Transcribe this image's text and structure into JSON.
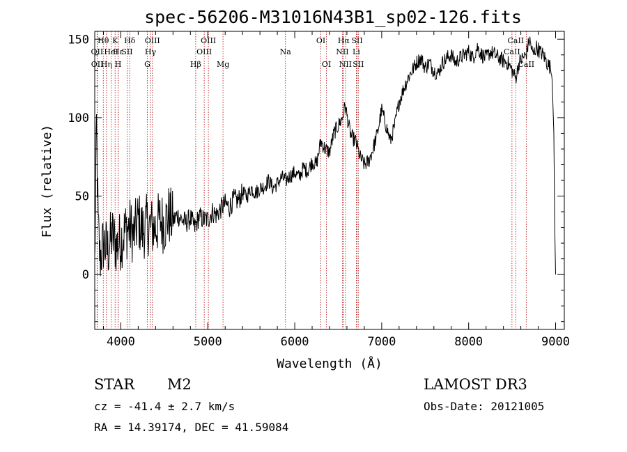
{
  "chart_data": {
    "type": "line",
    "title": "spec-56206-M31016N43B1_sp02-126.fits",
    "xlabel": "Wavelength (Å)",
    "ylabel": "Flux (relative)",
    "xlim": [
      3700,
      9100
    ],
    "ylim": [
      -35,
      155
    ],
    "x_ticks": [
      4000,
      5000,
      6000,
      7000,
      8000,
      9000
    ],
    "y_ticks": [
      0,
      50,
      100,
      150
    ],
    "series": [
      {
        "name": "spectrum",
        "x": [
          3700,
          3720,
          3740,
          3760,
          3800,
          3850,
          3900,
          3950,
          4000,
          4050,
          4100,
          4150,
          4200,
          4250,
          4300,
          4350,
          4400,
          4450,
          4500,
          4550,
          4600,
          4650,
          4700,
          4750,
          4800,
          4850,
          4900,
          4950,
          5000,
          5050,
          5100,
          5150,
          5200,
          5250,
          5300,
          5350,
          5400,
          5450,
          5500,
          5550,
          5600,
          5650,
          5700,
          5750,
          5800,
          5850,
          5900,
          5950,
          6000,
          6050,
          6100,
          6150,
          6200,
          6250,
          6300,
          6350,
          6400,
          6450,
          6500,
          6550,
          6580,
          6620,
          6650,
          6700,
          6750,
          6800,
          6850,
          6900,
          6950,
          7000,
          7050,
          7100,
          7150,
          7200,
          7250,
          7300,
          7350,
          7400,
          7450,
          7500,
          7550,
          7600,
          7650,
          7700,
          7750,
          7800,
          7850,
          7900,
          7950,
          8000,
          8050,
          8100,
          8150,
          8200,
          8250,
          8300,
          8350,
          8400,
          8450,
          8500,
          8540,
          8580,
          8620,
          8660,
          8700,
          8740,
          8780,
          8820,
          8860,
          8900,
          8940,
          8960,
          8980,
          8990,
          9000
        ],
        "y": [
          5,
          95,
          30,
          10,
          20,
          15,
          25,
          18,
          22,
          28,
          30,
          25,
          35,
          28,
          32,
          30,
          30,
          35,
          32,
          38,
          34,
          38,
          35,
          33,
          36,
          30,
          37,
          35,
          35,
          40,
          38,
          42,
          45,
          43,
          48,
          47,
          52,
          50,
          55,
          52,
          55,
          56,
          60,
          55,
          58,
          62,
          60,
          63,
          65,
          62,
          68,
          66,
          72,
          70,
          85,
          80,
          78,
          90,
          95,
          100,
          108,
          95,
          88,
          85,
          75,
          70,
          72,
          80,
          90,
          105,
          95,
          85,
          95,
          110,
          118,
          125,
          130,
          135,
          138,
          132,
          135,
          130,
          128,
          135,
          138,
          140,
          135,
          138,
          140,
          142,
          138,
          145,
          140,
          138,
          142,
          140,
          138,
          136,
          135,
          130,
          125,
          135,
          138,
          140,
          150,
          140,
          145,
          142,
          140,
          135,
          132,
          125,
          90,
          30,
          0
        ]
      }
    ],
    "spectral_lines": [
      {
        "label": "Hθ",
        "wavelength": 3798,
        "row": 0
      },
      {
        "label": "Hη",
        "wavelength": 3835,
        "row": 2
      },
      {
        "label": "OII",
        "wavelength": 3727,
        "row": 1
      },
      {
        "label": "OII",
        "wavelength": 3729,
        "row": 2
      },
      {
        "label": "Hε",
        "wavelength": 3970,
        "row": 1
      },
      {
        "label": "HeI",
        "wavelength": 3889,
        "row": 1
      },
      {
        "label": "K",
        "wavelength": 3934,
        "row": 0
      },
      {
        "label": "H",
        "wavelength": 3969,
        "row": 2
      },
      {
        "label": "SII",
        "wavelength": 4072,
        "row": 1
      },
      {
        "label": "Hδ",
        "wavelength": 4102,
        "row": 0
      },
      {
        "label": "OIII",
        "wavelength": 4363,
        "row": 0
      },
      {
        "label": "Hγ",
        "wavelength": 4341,
        "row": 1
      },
      {
        "label": "G",
        "wavelength": 4305,
        "row": 2
      },
      {
        "label": "Hβ",
        "wavelength": 4861,
        "row": 2
      },
      {
        "label": "OIII",
        "wavelength": 4959,
        "row": 1
      },
      {
        "label": "OIII",
        "wavelength": 5007,
        "row": 0
      },
      {
        "label": "Mg",
        "wavelength": 5175,
        "row": 2
      },
      {
        "label": "Na",
        "wavelength": 5893,
        "row": 1
      },
      {
        "label": "OI",
        "wavelength": 6300,
        "row": 0
      },
      {
        "label": "OI",
        "wavelength": 6364,
        "row": 2
      },
      {
        "label": "Hα",
        "wavelength": 6563,
        "row": 0
      },
      {
        "label": "NII",
        "wavelength": 6548,
        "row": 1
      },
      {
        "label": "NII",
        "wavelength": 6584,
        "row": 2
      },
      {
        "label": "SII",
        "wavelength": 6717,
        "row": 0
      },
      {
        "label": "SII",
        "wavelength": 6731,
        "row": 2
      },
      {
        "label": "Li",
        "wavelength": 6708,
        "row": 1
      },
      {
        "label": "CaII",
        "wavelength": 8498,
        "row": 1
      },
      {
        "label": "CaII",
        "wavelength": 8542,
        "row": 0
      },
      {
        "label": "CaII",
        "wavelength": 8662,
        "row": 2
      }
    ]
  },
  "info": {
    "object_class": "STAR",
    "subclass": "M2",
    "redshift_text": "cz = -41.4 ± 2.7 km/s",
    "coords_text": "RA =  14.39174, DEC =  41.59084",
    "survey": "LAMOST DR3",
    "obs_date_text": "Obs-Date: 20121005"
  },
  "colors": {
    "spectrum": "#000000",
    "line_marker": "#b00000",
    "axes": "#000000",
    "background": "#ffffff"
  }
}
